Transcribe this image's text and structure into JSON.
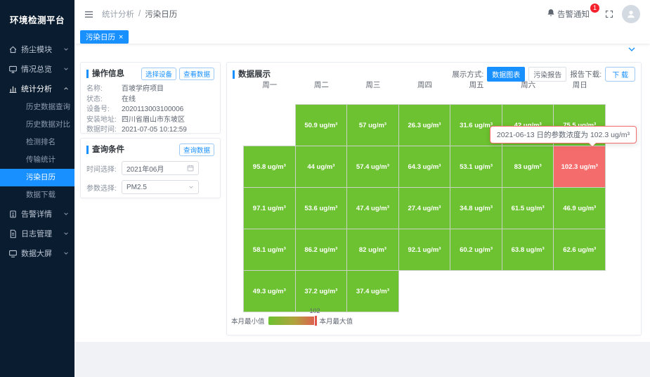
{
  "app": {
    "title": "环境检测平台"
  },
  "header": {
    "breadcrumb": [
      "统计分析",
      "污染日历"
    ],
    "notification": {
      "label": "告警通知",
      "badge": "1"
    }
  },
  "tabs": [
    {
      "label": "污染日历",
      "close": "×"
    }
  ],
  "sidebar": {
    "items": [
      {
        "label": "扬尘模块",
        "icon": "home-icon",
        "expanded": false
      },
      {
        "label": "情况总览",
        "icon": "monitor-icon",
        "expanded": false
      },
      {
        "label": "统计分析",
        "icon": "chart-icon",
        "expanded": true,
        "children": [
          "历史数据查询",
          "历史数据对比",
          "检测排名",
          "传输统计",
          "污染日历",
          "数据下载"
        ],
        "active_child": "污染日历"
      },
      {
        "label": "告警详情",
        "icon": "alert-icon",
        "expanded": false
      },
      {
        "label": "日志管理",
        "icon": "log-icon",
        "expanded": false
      },
      {
        "label": "数据大屏",
        "icon": "screen-icon",
        "expanded": false
      }
    ]
  },
  "operation_info": {
    "title": "操作信息",
    "buttons": {
      "select_device": "选择设备",
      "view_data": "查看数据"
    },
    "fields": [
      {
        "label": "名称:",
        "value": "百坡学府项目"
      },
      {
        "label": "状态:",
        "value": "在线"
      },
      {
        "label": "设备号:",
        "value": "2020113003100006"
      },
      {
        "label": "安装地址:",
        "value": "四川省眉山市东坡区"
      },
      {
        "label": "数据时间:",
        "value": "2021-07-05 10:12:59"
      }
    ]
  },
  "query_panel": {
    "title": "查询条件",
    "query_button": "查询数据",
    "time_label": "时间选择:",
    "time_value": "2021年06月",
    "param_label": "参数选择:",
    "param_value": "PM2.5"
  },
  "display_panel": {
    "title": "数据展示",
    "mode_label": "展示方式:",
    "mode_options": [
      "数据图表",
      "污染报告"
    ],
    "active_mode": "数据图表",
    "download_label": "报告下载:",
    "download_button": "下 载"
  },
  "tooltip": {
    "text": "2021-06-13 日的参数浓度为 102.3 ug/m³"
  },
  "legend": {
    "min_label": "本月最小值",
    "max_label": "本月最大值",
    "max_value": "102"
  },
  "chart_data": {
    "type": "heatmap",
    "title": "污染日历 数据展示",
    "month": "2021年06月",
    "parameter": "PM2.5",
    "unit": "ug/m³",
    "columns": [
      "周一",
      "周二",
      "周三",
      "周四",
      "周五",
      "周六",
      "周日"
    ],
    "weeks": [
      [
        null,
        50.9,
        57,
        26.3,
        31.6,
        42,
        75.5
      ],
      [
        95.8,
        44,
        57.4,
        64.3,
        53.1,
        83,
        102.3
      ],
      [
        97.1,
        53.6,
        47.4,
        27.4,
        34.8,
        61.5,
        46.9
      ],
      [
        58.1,
        86.2,
        82,
        92.1,
        60.2,
        63.8,
        62.6
      ],
      [
        49.3,
        37.2,
        37.4,
        null,
        null,
        null,
        null
      ]
    ],
    "highlight": {
      "week": 1,
      "day": 6,
      "date": "2021-06-13",
      "value": 102.3
    },
    "value_range": [
      26.3,
      102.3
    ]
  },
  "colors": {
    "accent": "#1890ff",
    "cell_green": "#6cc230",
    "cell_red": "#f56c6c",
    "sidebar_bg": "#0a1c30",
    "badge_red": "#f5222d"
  }
}
